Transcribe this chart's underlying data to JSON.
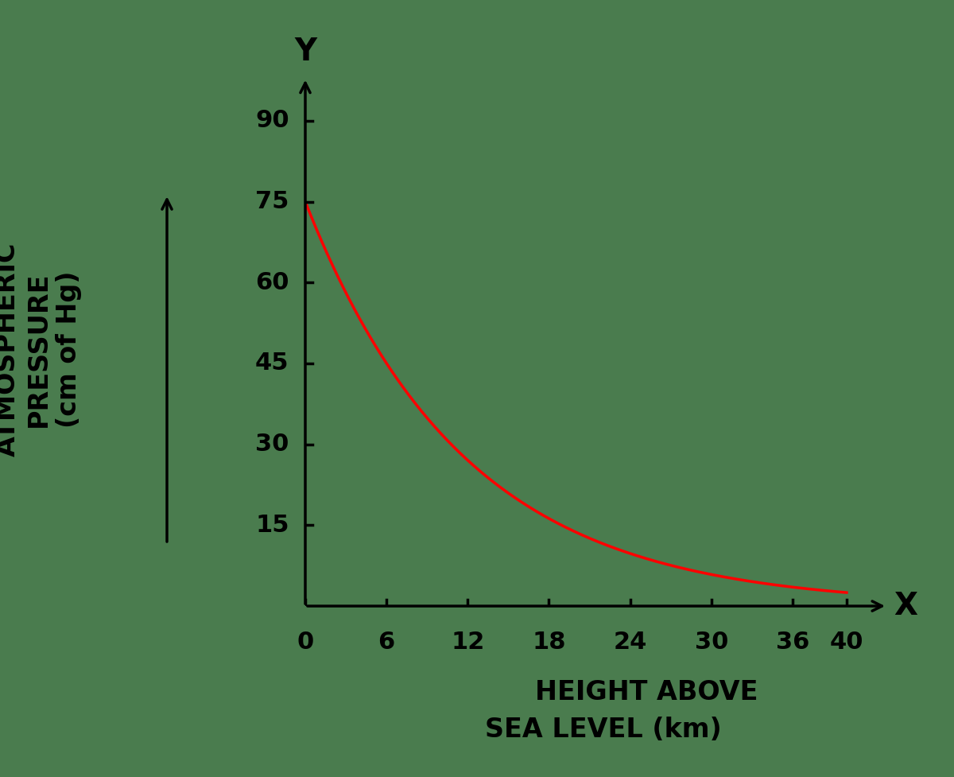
{
  "background_color": "#4a7c4e",
  "curve_color": "#ff0000",
  "curve_linewidth": 2.5,
  "x_start": 0,
  "x_end": 40,
  "pressure_at_zero": 75,
  "decay_constant": 0.085,
  "yticks": [
    15,
    30,
    45,
    60,
    75,
    90
  ],
  "xticks": [
    0,
    6,
    12,
    18,
    24,
    30,
    36,
    40
  ],
  "xlim": [
    0,
    43
  ],
  "ylim": [
    0,
    98
  ],
  "ylabel_text": "ATMOSPHERIC\nPRESSURE\n(cm of Hg)",
  "xlabel_line1": "HEIGHT ABOVE",
  "xlabel_line2": "SEA LEVEL (km)",
  "axis_label_x": "X",
  "axis_label_y": "Y",
  "tick_fontsize": 22,
  "label_fontsize": 24,
  "axis_letter_fontsize": 28,
  "text_color": "#000000",
  "axis_color": "#000000",
  "spine_linewidth": 2.5,
  "arrow_mutation_scale": 22
}
